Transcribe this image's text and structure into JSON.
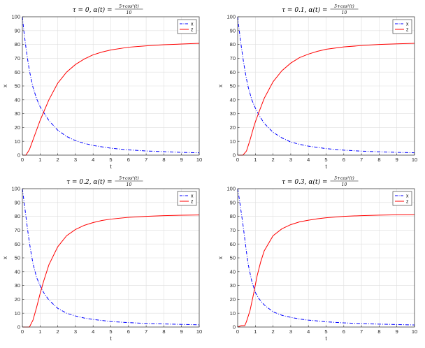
{
  "chart_data": [
    {
      "type": "line",
      "title_prefix": "τ = 0, α(t) =",
      "title_num": "5+cos²(t)",
      "title_den": "10",
      "xlabel": "t",
      "ylabel": "x",
      "xlim": [
        0,
        10
      ],
      "ylim": [
        0,
        100
      ],
      "xticks": [
        "0",
        "1",
        "2",
        "3",
        "4",
        "5",
        "6",
        "7",
        "8",
        "9",
        "10"
      ],
      "yticks": [
        "0",
        "10",
        "20",
        "30",
        "40",
        "50",
        "60",
        "70",
        "80",
        "90",
        "100"
      ],
      "grid": true,
      "legend": "top-right",
      "series": [
        {
          "name": "x",
          "style": "dashdot",
          "color": "#0000ff",
          "x": [
            0,
            0.1,
            0.2,
            0.3,
            0.4,
            0.5,
            0.6,
            0.8,
            1,
            1.2,
            1.5,
            2,
            2.5,
            3,
            3.5,
            4,
            5,
            6,
            7,
            8,
            9,
            10
          ],
          "y": [
            100,
            88,
            78,
            69,
            61,
            55,
            49,
            41,
            35,
            31,
            25,
            18,
            13.5,
            10.5,
            8.5,
            7,
            5,
            3.8,
            3,
            2.5,
            2,
            1.7
          ]
        },
        {
          "name": "z",
          "style": "solid",
          "color": "#ff0000",
          "x": [
            0,
            0.2,
            0.4,
            0.6,
            0.8,
            1,
            1.2,
            1.5,
            2,
            2.5,
            3,
            3.5,
            4,
            4.5,
            5,
            6,
            7,
            8,
            9,
            10
          ],
          "y": [
            0,
            0,
            4,
            11,
            18,
            25,
            31,
            40,
            52,
            60,
            65.5,
            69.5,
            72.5,
            74.5,
            76,
            78,
            79,
            79.8,
            80.3,
            80.8
          ]
        }
      ]
    },
    {
      "type": "line",
      "title_prefix": "τ = 0.1, α(t) =",
      "title_num": "5+cos²(t)",
      "title_den": "10",
      "xlabel": "t",
      "ylabel": "x",
      "xlim": [
        0,
        10
      ],
      "ylim": [
        0,
        100
      ],
      "xticks": [
        "0",
        "1",
        "2",
        "3",
        "4",
        "5",
        "6",
        "7",
        "8",
        "9",
        "10"
      ],
      "yticks": [
        "0",
        "10",
        "20",
        "30",
        "40",
        "50",
        "60",
        "70",
        "80",
        "90",
        "100"
      ],
      "grid": true,
      "legend": "top-right",
      "series": [
        {
          "name": "x",
          "style": "dashdot",
          "color": "#0000ff",
          "x": [
            0,
            0.1,
            0.2,
            0.3,
            0.4,
            0.5,
            0.6,
            0.8,
            1,
            1.2,
            1.5,
            2,
            2.5,
            3,
            3.5,
            4,
            5,
            6,
            7,
            8,
            9,
            10
          ],
          "y": [
            100,
            89,
            79,
            70,
            62,
            55,
            49,
            40,
            34,
            29,
            23,
            16.5,
            12.5,
            9.5,
            7.8,
            6.5,
            4.7,
            3.6,
            2.9,
            2.4,
            2,
            1.7
          ]
        },
        {
          "name": "z",
          "style": "solid",
          "color": "#ff0000",
          "x": [
            0,
            0.3,
            0.5,
            0.7,
            0.9,
            1,
            1.2,
            1.5,
            2,
            2.5,
            3,
            3.5,
            4,
            4.5,
            5,
            6,
            7,
            8,
            9,
            10
          ],
          "y": [
            0,
            0,
            3,
            11,
            20,
            24,
            31,
            41,
            53,
            61,
            66.5,
            70.5,
            73,
            75,
            76.5,
            78.2,
            79.2,
            80,
            80.4,
            80.8
          ]
        }
      ]
    },
    {
      "type": "line",
      "title_prefix": "τ = 0.2, α(t) =",
      "title_num": "5+cos²(t)",
      "title_den": "10",
      "xlabel": "t",
      "ylabel": "x",
      "xlim": [
        0,
        10
      ],
      "ylim": [
        0,
        100
      ],
      "xticks": [
        "0",
        "1",
        "2",
        "3",
        "4",
        "5",
        "6",
        "7",
        "8",
        "9",
        "10"
      ],
      "yticks": [
        "0",
        "10",
        "20",
        "30",
        "40",
        "50",
        "60",
        "70",
        "80",
        "90",
        "100"
      ],
      "grid": true,
      "legend": "top-right",
      "series": [
        {
          "name": "x",
          "style": "dashdot",
          "color": "#0000ff",
          "x": [
            0,
            0.1,
            0.2,
            0.3,
            0.4,
            0.5,
            0.6,
            0.8,
            1,
            1.2,
            1.5,
            2,
            2.5,
            3,
            3.5,
            4,
            5,
            6,
            7,
            8,
            9,
            10
          ],
          "y": [
            100,
            90,
            80,
            70,
            61,
            53,
            46,
            36,
            30,
            25,
            19.5,
            13.5,
            10,
            8,
            6.5,
            5.5,
            4,
            3.2,
            2.6,
            2.2,
            1.9,
            1.6
          ]
        },
        {
          "name": "z",
          "style": "solid",
          "color": "#ff0000",
          "x": [
            0,
            0.4,
            0.6,
            0.8,
            1,
            1.2,
            1.5,
            2,
            2.5,
            3,
            3.5,
            4,
            4.5,
            5,
            6,
            7,
            8,
            9,
            10
          ],
          "y": [
            0,
            0,
            5,
            14,
            24,
            33,
            45,
            58,
            66,
            70.5,
            73.5,
            75.5,
            77,
            78,
            79.3,
            80,
            80.5,
            80.8,
            81
          ]
        }
      ]
    },
    {
      "type": "line",
      "title_prefix": "τ = 0.3, α(t) =",
      "title_num": "5+cos²(t)",
      "title_den": "10",
      "xlabel": "t",
      "ylabel": "x",
      "xlim": [
        0,
        10
      ],
      "ylim": [
        0,
        100
      ],
      "xticks": [
        "0",
        "1",
        "2",
        "3",
        "4",
        "5",
        "6",
        "7",
        "8",
        "9",
        "10"
      ],
      "yticks": [
        "0",
        "10",
        "20",
        "30",
        "40",
        "50",
        "60",
        "70",
        "80",
        "90",
        "100"
      ],
      "grid": true,
      "legend": "top-right",
      "series": [
        {
          "name": "x",
          "style": "dashdot",
          "color": "#0000ff",
          "x": [
            0,
            0.1,
            0.2,
            0.3,
            0.4,
            0.5,
            0.6,
            0.8,
            1,
            1.2,
            1.5,
            2,
            2.5,
            3,
            3.5,
            4,
            5,
            6,
            7,
            8,
            9,
            10
          ],
          "y": [
            100,
            92,
            83,
            74,
            64,
            54,
            45,
            33,
            25,
            20.5,
            16,
            11,
            8.5,
            7,
            5.8,
            5,
            3.8,
            3,
            2.5,
            2.1,
            1.8,
            1.5
          ]
        },
        {
          "name": "z",
          "style": "solid",
          "color": "#ff0000",
          "x": [
            0,
            0.2,
            0.4,
            0.5,
            0.7,
            0.9,
            1.1,
            1.3,
            1.5,
            2,
            2.5,
            3,
            3.5,
            4,
            4.5,
            5,
            6,
            7,
            8,
            9,
            10
          ],
          "y": [
            0,
            1,
            1,
            4,
            12,
            24,
            37,
            47,
            55,
            66,
            71,
            74,
            76,
            77.2,
            78.2,
            79,
            80,
            80.5,
            80.9,
            81.1,
            81.2
          ]
        }
      ]
    }
  ]
}
